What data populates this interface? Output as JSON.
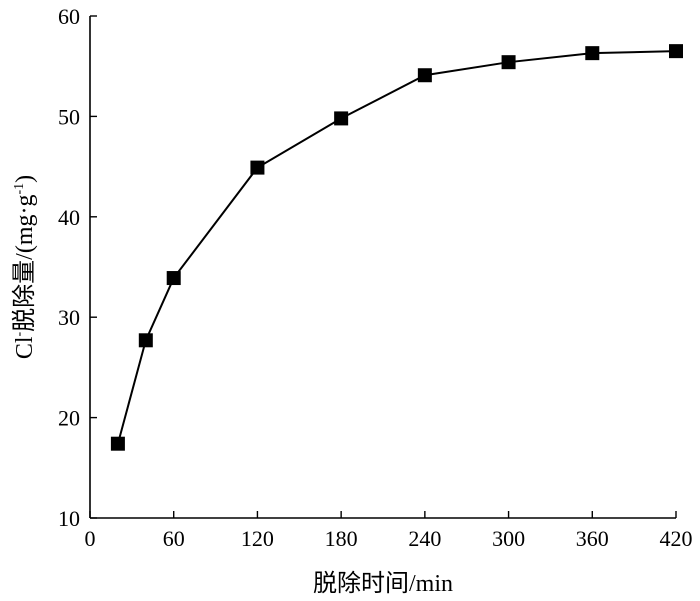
{
  "chart_data": {
    "type": "line",
    "xlabel": "脱除时间/min",
    "ylabel_parts": {
      "ion": "Cl",
      "charge": "-",
      "label": "脱除量/(mg·g",
      "exponent": "-1",
      "close": ")"
    },
    "xlim": [
      0,
      420
    ],
    "ylim": [
      10,
      60
    ],
    "xticks": [
      0,
      60,
      120,
      180,
      240,
      300,
      360,
      420
    ],
    "yticks": [
      10,
      20,
      30,
      40,
      50,
      60
    ],
    "grid": false,
    "marker": "square",
    "series": [
      {
        "x": [
          20,
          40,
          60,
          120,
          180,
          240,
          300,
          360,
          420
        ],
        "y": [
          17.4,
          27.7,
          33.9,
          44.9,
          49.8,
          54.1,
          55.4,
          56.3,
          56.5
        ]
      }
    ]
  }
}
